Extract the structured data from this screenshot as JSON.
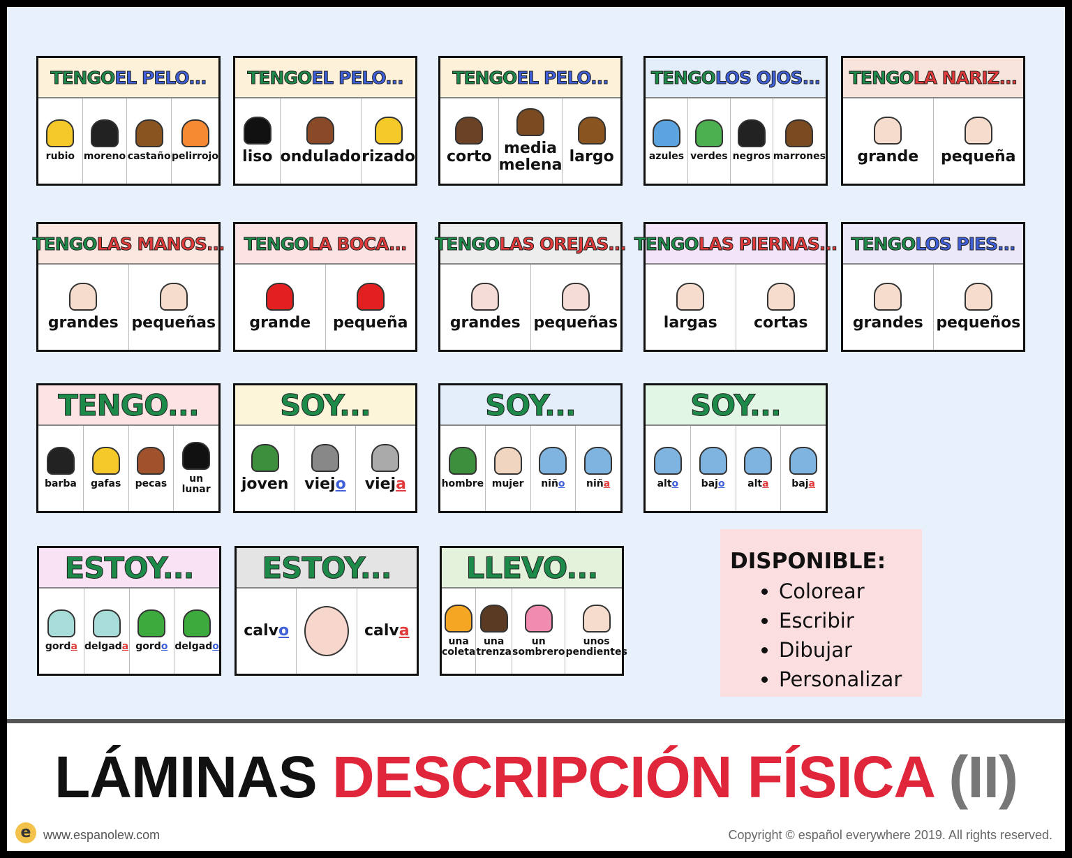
{
  "colors": {
    "green": "#1d8a4a",
    "blue": "#3f5fd8",
    "red": "#e03a3a"
  },
  "cards": [
    {
      "h": [
        [
          "TENGO ",
          "green"
        ],
        [
          "EL PELO...",
          "blue"
        ]
      ],
      "bg": "#fdf1d9",
      "size": "small",
      "items": [
        {
          "t": "rubio",
          "c": "#f5c92a"
        },
        {
          "t": "moreno",
          "c": "#222"
        },
        {
          "t": "castaño",
          "c": "#8a5420"
        },
        {
          "t": "pelirrojo",
          "c": "#f58a33"
        }
      ]
    },
    {
      "h": [
        [
          "TENGO ",
          "green"
        ],
        [
          "EL PELO...",
          "blue"
        ]
      ],
      "bg": "#fdf1d9",
      "size": "small",
      "items": [
        {
          "t": "liso",
          "c": "#111"
        },
        {
          "t": "ondulado",
          "c": "#8a4a28"
        },
        {
          "t": "rizado",
          "c": "#f5c92a"
        }
      ],
      "l": true
    },
    {
      "h": [
        [
          "TENGO ",
          "green"
        ],
        [
          "EL PELO...",
          "blue"
        ]
      ],
      "bg": "#fdf1d9",
      "size": "small",
      "items": [
        {
          "t": "corto",
          "c": "#6b4226"
        },
        {
          "t": "media melena",
          "c": "#7a4a20"
        },
        {
          "t": "largo",
          "c": "#8a5420"
        }
      ],
      "l": true
    },
    {
      "h": [
        [
          "TENGO ",
          "green"
        ],
        [
          "LOS OJOS...",
          "blue"
        ]
      ],
      "bg": "#e4eefb",
      "size": "small",
      "items": [
        {
          "t": "azules",
          "c": "#5ba4e0"
        },
        {
          "t": "verdes",
          "c": "#4caf50"
        },
        {
          "t": "negros",
          "c": "#222"
        },
        {
          "t": "marrones",
          "c": "#7a4a20"
        }
      ]
    },
    {
      "h": [
        [
          "TENGO ",
          "green"
        ],
        [
          "LA NARIZ...",
          "red"
        ]
      ],
      "bg": "#f8e4da",
      "size": "small",
      "items": [
        {
          "t": "grande",
          "c": "#f6dccc"
        },
        {
          "t": "pequeña",
          "c": "#f6dccc"
        }
      ],
      "l": true
    },
    {
      "h": [
        [
          "TENGO ",
          "green"
        ],
        [
          "LAS MANOS...",
          "red"
        ]
      ],
      "bg": "#fce6e0",
      "size": "small",
      "items": [
        {
          "t": "grandes",
          "c": "#f6dccc"
        },
        {
          "t": "pequeñas",
          "c": "#f6dccc"
        }
      ],
      "l": true
    },
    {
      "h": [
        [
          "TENGO ",
          "green"
        ],
        [
          "LA BOCA...",
          "red"
        ]
      ],
      "bg": "#fbe3e3",
      "size": "small",
      "items": [
        {
          "t": "grande",
          "c": "#e32020"
        },
        {
          "t": "pequeña",
          "c": "#e32020"
        }
      ],
      "l": true
    },
    {
      "h": [
        [
          "TENGO ",
          "green"
        ],
        [
          "LAS OREJAS...",
          "red"
        ]
      ],
      "bg": "#ededed",
      "size": "small",
      "items": [
        {
          "t": "grandes",
          "c": "#f6dcd6"
        },
        {
          "t": "pequeñas",
          "c": "#f6dcd6"
        }
      ],
      "l": true
    },
    {
      "h": [
        [
          "TENGO ",
          "green"
        ],
        [
          "LAS PIERNAS...",
          "red"
        ]
      ],
      "bg": "#f3e4f8",
      "size": "small",
      "items": [
        {
          "t": "largas",
          "c": "#f6dccc"
        },
        {
          "t": "cortas",
          "c": "#f6dccc"
        }
      ],
      "l": true
    },
    {
      "h": [
        [
          "TENGO ",
          "green"
        ],
        [
          "LOS PIES...",
          "blue"
        ]
      ],
      "bg": "#ebe8fa",
      "size": "small",
      "items": [
        {
          "t": "grandes",
          "c": "#f6dccc"
        },
        {
          "t": "pequeños",
          "c": "#f6dccc"
        }
      ],
      "l": true
    },
    {
      "h": [
        [
          "TENGO...",
          "green"
        ]
      ],
      "bg": "#fde4e4",
      "size": "big",
      "items": [
        {
          "t": "barba",
          "c": "#222"
        },
        {
          "t": "gafas",
          "c": "#f5c92a"
        },
        {
          "t": "pecas",
          "c": "#a0522d"
        },
        {
          "t": "un lunar",
          "c": "#111"
        }
      ]
    },
    {
      "h": [
        [
          "SOY...",
          "green"
        ]
      ],
      "bg": "#fdf5d9",
      "size": "big",
      "items": [
        {
          "t": "joven",
          "c": "#3d8f3d"
        },
        {
          "t": "viej",
          "e": "o",
          "ec": "blue",
          "c": "#888"
        },
        {
          "t": "viej",
          "e": "a",
          "ec": "red",
          "c": "#aaa"
        }
      ],
      "l": true
    },
    {
      "h": [
        [
          "SOY...",
          "green"
        ]
      ],
      "bg": "#e4eefb",
      "size": "big",
      "items": [
        {
          "t": "hombre",
          "c": "#3d8f3d"
        },
        {
          "t": "mujer",
          "c": "#f0d5c0"
        },
        {
          "t": "niñ",
          "e": "o",
          "ec": "blue",
          "c": "#7fb3e0"
        },
        {
          "t": "niñ",
          "e": "a",
          "ec": "red",
          "c": "#7fb3e0"
        }
      ]
    },
    {
      "h": [
        [
          "SOY...",
          "green"
        ]
      ],
      "bg": "#e2f6e5",
      "size": "big",
      "items": [
        {
          "t": "alt",
          "e": "o",
          "ec": "blue",
          "c": "#7fb3e0"
        },
        {
          "t": "baj",
          "e": "o",
          "ec": "blue",
          "c": "#7fb3e0"
        },
        {
          "t": "alt",
          "e": "a",
          "ec": "red",
          "c": "#7fb3e0"
        },
        {
          "t": "baj",
          "e": "a",
          "ec": "red",
          "c": "#7fb3e0"
        }
      ]
    },
    {
      "h": [
        [
          "ESTOY...",
          "green"
        ]
      ],
      "bg": "#fae2f5",
      "size": "big",
      "items": [
        {
          "t": "gord",
          "e": "a",
          "ec": "red",
          "c": "#a8dcd8"
        },
        {
          "t": "delgad",
          "e": "a",
          "ec": "red",
          "c": "#a8dcd8"
        },
        {
          "t": "gord",
          "e": "o",
          "ec": "blue",
          "c": "#3daa3d"
        },
        {
          "t": "delgad",
          "e": "o",
          "ec": "blue",
          "c": "#3daa3d"
        }
      ]
    },
    {
      "h": [
        [
          "ESTOY...",
          "green"
        ]
      ],
      "bg": "#e4e4e4",
      "size": "big",
      "items": [
        {
          "t": "calv",
          "e": "o",
          "ec": "blue",
          "nopic": true
        },
        {
          "t": "",
          "c": "#f7d6cc"
        },
        {
          "t": "calv",
          "e": "a",
          "ec": "red",
          "nopic": true
        }
      ],
      "l": true
    },
    {
      "h": [
        [
          "LLEVO...",
          "green"
        ]
      ],
      "bg": "#e4f2dc",
      "size": "big",
      "items": [
        {
          "t": "una coleta",
          "c": "#f5a623"
        },
        {
          "t": "una trenza",
          "c": "#5a3a22"
        },
        {
          "t": "un sombrero",
          "c": "#f08cb0"
        },
        {
          "t": "unos pendientes",
          "c": "#f6dccc"
        }
      ]
    }
  ],
  "available": {
    "title": "DISPONIBLE:",
    "items": [
      "Colorear",
      "Escribir",
      "Dibujar",
      "Personalizar"
    ]
  },
  "footer": {
    "title_black": "LÁMINAS ",
    "title_red": "DESCRIPCIÓN FÍSICA ",
    "title_gray": "(II)",
    "site": "www.espanolew.com",
    "logo": "e",
    "copyright": "Copyright © español everywhere 2019. All rights reserved."
  }
}
